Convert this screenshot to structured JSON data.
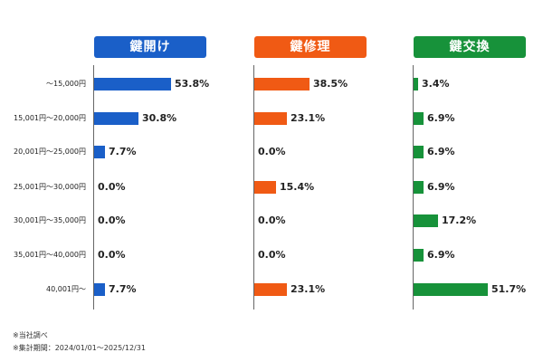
{
  "chart_data": {
    "type": "bar",
    "orientation": "horizontal",
    "categories": [
      "～15,000円",
      "15,001円～20,000円",
      "20,001円～25,000円",
      "25,001円～30,000円",
      "30,001円～35,000円",
      "35,001円～40,000円",
      "40,001円～"
    ],
    "series": [
      {
        "name": "鍵開け",
        "color": "#1a5fc8",
        "values": [
          53.8,
          30.8,
          7.7,
          0.0,
          0.0,
          0.0,
          7.7
        ],
        "labels": [
          "53.8%",
          "30.8%",
          "7.7%",
          "0.0%",
          "0.0%",
          "0.0%",
          "7.7%"
        ]
      },
      {
        "name": "鍵修理",
        "color": "#f05a14",
        "values": [
          38.5,
          23.1,
          0.0,
          15.4,
          0.0,
          0.0,
          23.1
        ],
        "labels": [
          "38.5%",
          "23.1%",
          "0.0%",
          "15.4%",
          "0.0%",
          "0.0%",
          "23.1%"
        ]
      },
      {
        "name": "鍵交換",
        "color": "#17923a",
        "values": [
          3.4,
          6.9,
          6.9,
          6.9,
          17.2,
          6.9,
          51.7
        ],
        "labels": [
          "3.4%",
          "6.9%",
          "6.9%",
          "6.9%",
          "17.2%",
          "6.9%",
          "51.7%"
        ]
      }
    ],
    "unit": "%",
    "xlim": [
      0,
      60
    ],
    "grid": false,
    "legend": "none"
  },
  "footnotes": [
    "※当社調べ",
    "※集計期間：2024/01/01～2025/12/31"
  ]
}
